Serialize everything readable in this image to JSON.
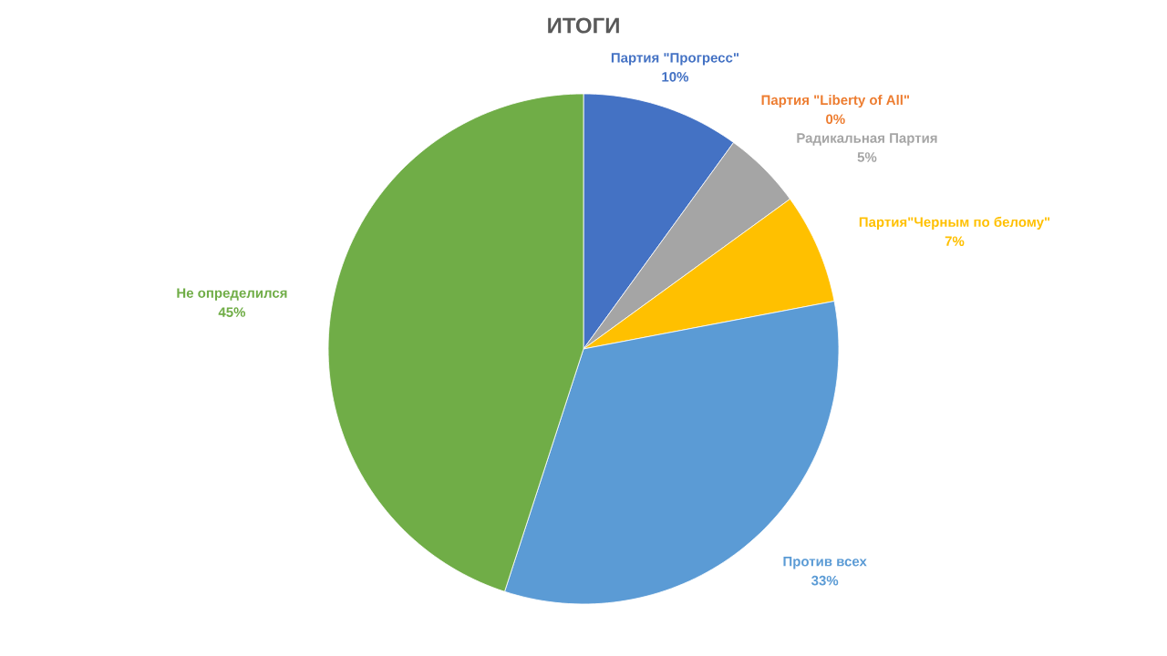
{
  "chart_data": {
    "type": "pie",
    "title": "ИТОГИ",
    "categories": [
      "Партия \"Прогресс\"",
      "Партия \"Liberty of All\"",
      "Радикальная Партия",
      "Партия\"Черным по белому\"",
      "Против всех",
      "Не определился"
    ],
    "values": [
      10,
      0,
      5,
      7,
      33,
      45
    ],
    "value_labels": [
      "10%",
      "0%",
      "5%",
      "7%",
      "33%",
      "45%"
    ],
    "colors": [
      "#4472c4",
      "#ed7d31",
      "#a5a5a5",
      "#ffc000",
      "#5b9bd5",
      "#70ad47"
    ]
  }
}
